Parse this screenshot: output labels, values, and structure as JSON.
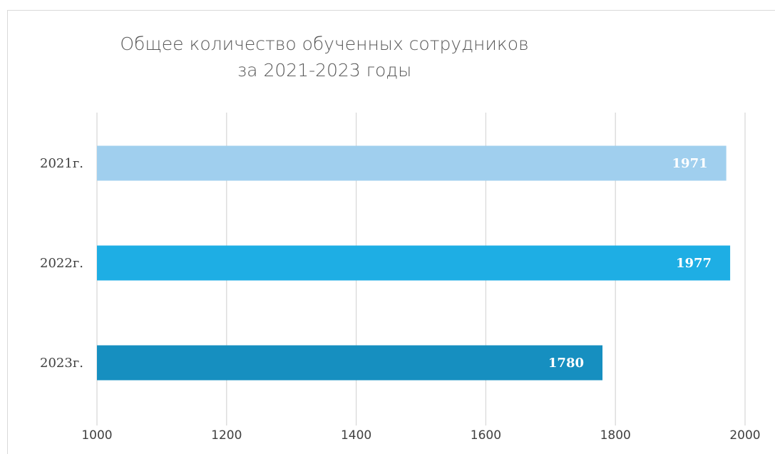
{
  "chart_data": {
    "type": "barh",
    "title": [
      "Общее количество обученных сотрудников",
      "за 2021-2023 годы"
    ],
    "categories": [
      "2021г.",
      "2022г.",
      "2023г."
    ],
    "values": [
      1971,
      1977,
      1780
    ],
    "colors": [
      "#a0cfee",
      "#1eaee4",
      "#168fc0"
    ],
    "xlim": [
      1000,
      2000
    ],
    "xticks": [
      1000,
      1200,
      1400,
      1600,
      1800,
      2000
    ],
    "grid": true
  }
}
